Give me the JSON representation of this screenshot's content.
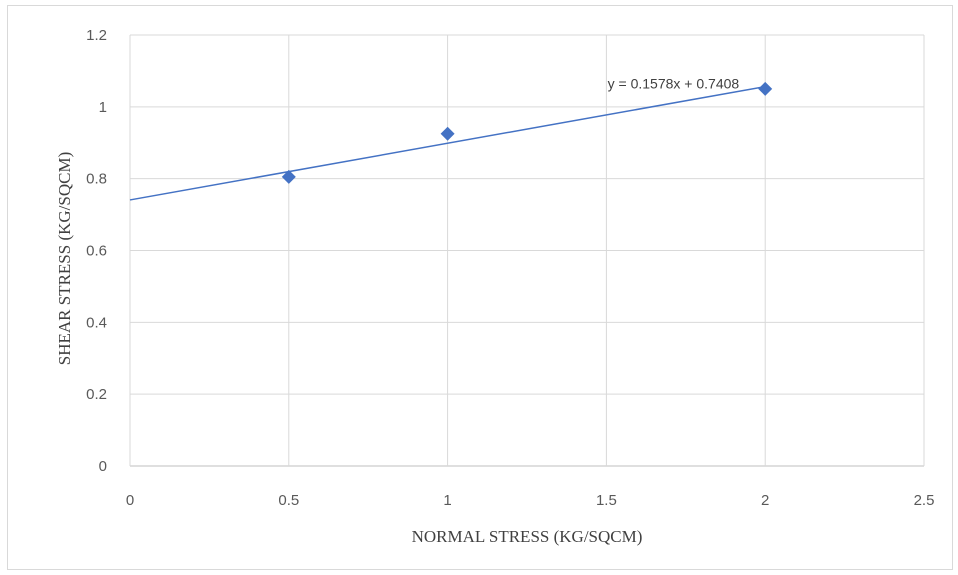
{
  "chart_data": {
    "type": "scatter",
    "title": "",
    "xlabel": "NORMAL STRESS (KG/SQCM)",
    "ylabel": "SHEAR STRESS (KG/SQCM)",
    "xlim": [
      0,
      2.5
    ],
    "ylim": [
      0,
      1.2
    ],
    "x_ticks": [
      "0",
      "0.5",
      "1",
      "1.5",
      "2",
      "2.5"
    ],
    "y_ticks": [
      "0",
      "0.2",
      "0.4",
      "0.6",
      "0.8",
      "1",
      "1.2"
    ],
    "grid": true,
    "series": [
      {
        "x": [
          0.5,
          1,
          2
        ],
        "y": [
          0.805,
          0.925,
          1.05
        ],
        "marker": "diamond",
        "color": "#4472c4"
      }
    ],
    "trendline": {
      "type": "linear",
      "slope": 0.1578,
      "intercept": 0.7408,
      "x_range": [
        0,
        2
      ],
      "equation_label": "y = 0.1578x + 0.7408",
      "color": "#4472c4"
    },
    "colors": {
      "grid": "#d9d9d9",
      "axis": "#bfbfbf",
      "text": "#595959"
    }
  }
}
